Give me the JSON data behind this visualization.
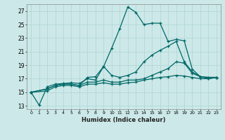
{
  "xlabel": "Humidex (Indice chaleur)",
  "bg_color": "#cce8e8",
  "grid_color": "#b0d4d4",
  "line_color": "#006868",
  "xlim": [
    -0.5,
    23.5
  ],
  "ylim": [
    12.5,
    28.0
  ],
  "xticks": [
    0,
    1,
    2,
    3,
    4,
    5,
    6,
    7,
    8,
    9,
    10,
    11,
    12,
    13,
    14,
    15,
    16,
    17,
    18,
    19,
    20,
    21,
    22,
    23
  ],
  "yticks": [
    13,
    15,
    17,
    19,
    21,
    23,
    25,
    27
  ],
  "line1_x": [
    0,
    1,
    2,
    3,
    4,
    5,
    6,
    7,
    8,
    9,
    10,
    11,
    12,
    13,
    14,
    15,
    16,
    17,
    18,
    19,
    20,
    21,
    22,
    23
  ],
  "line1_y": [
    15.0,
    13.1,
    15.8,
    16.2,
    16.3,
    16.4,
    16.3,
    17.0,
    16.8,
    18.8,
    21.5,
    24.4,
    27.6,
    26.8,
    25.0,
    25.2,
    25.2,
    22.5,
    22.8,
    22.6,
    18.4,
    17.3,
    17.2,
    17.2
  ],
  "line2_x": [
    0,
    2,
    3,
    4,
    5,
    6,
    7,
    8,
    9,
    10,
    11,
    12,
    13,
    14,
    15,
    16,
    17,
    18,
    19,
    20,
    21,
    22,
    23
  ],
  "line2_y": [
    15.0,
    15.5,
    16.0,
    16.2,
    16.2,
    16.0,
    17.2,
    17.3,
    18.8,
    17.5,
    17.2,
    17.5,
    18.0,
    19.5,
    20.5,
    21.2,
    21.8,
    22.5,
    19.5,
    18.0,
    17.3,
    17.2,
    17.2
  ],
  "line3_x": [
    0,
    2,
    3,
    4,
    5,
    6,
    7,
    8,
    9,
    10,
    11,
    12,
    13,
    14,
    15,
    16,
    17,
    18,
    19,
    20,
    21,
    22,
    23
  ],
  "line3_y": [
    15.0,
    15.5,
    16.0,
    16.2,
    16.2,
    16.0,
    16.5,
    16.5,
    16.8,
    16.5,
    16.5,
    16.8,
    16.8,
    17.0,
    17.5,
    18.0,
    18.5,
    19.5,
    19.3,
    17.8,
    17.3,
    17.0,
    17.2
  ],
  "line4_x": [
    0,
    2,
    3,
    4,
    5,
    6,
    7,
    8,
    9,
    10,
    11,
    12,
    13,
    14,
    15,
    16,
    17,
    18,
    19,
    20,
    21,
    22,
    23
  ],
  "line4_y": [
    15.0,
    15.2,
    15.8,
    16.0,
    16.0,
    15.8,
    16.2,
    16.2,
    16.4,
    16.2,
    16.2,
    16.4,
    16.5,
    16.8,
    17.0,
    17.2,
    17.3,
    17.5,
    17.4,
    17.2,
    17.0,
    17.0,
    17.2
  ]
}
